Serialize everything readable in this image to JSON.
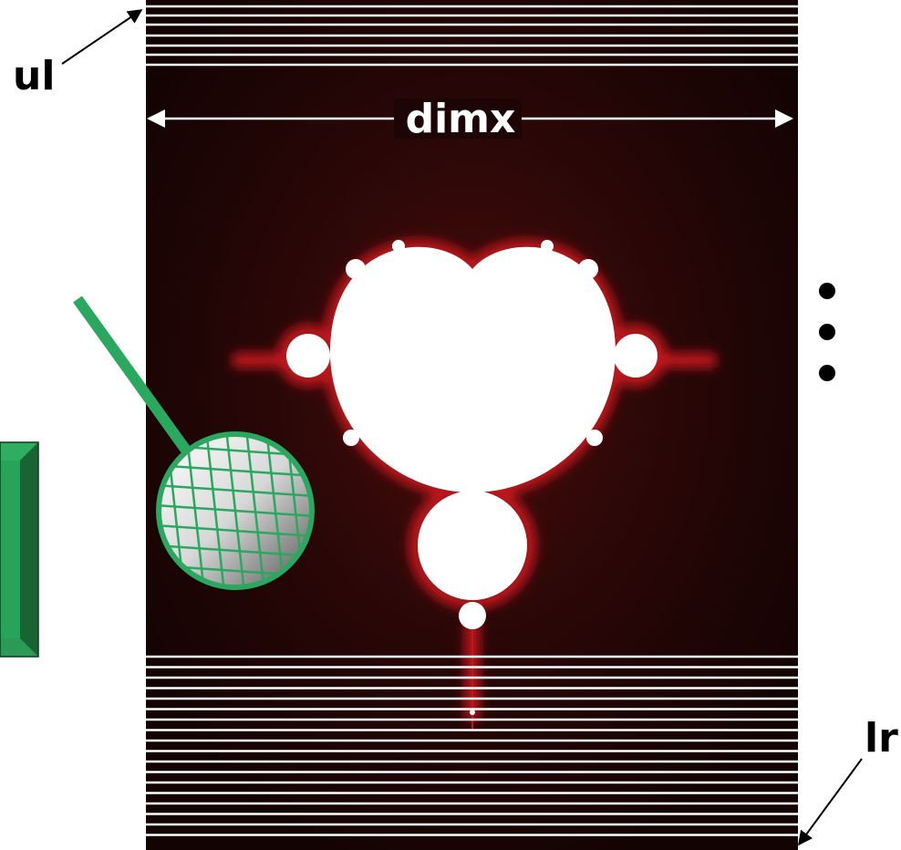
{
  "labels": {
    "upper_left": "ul",
    "width": "dimx",
    "lower_right": "lr"
  }
}
